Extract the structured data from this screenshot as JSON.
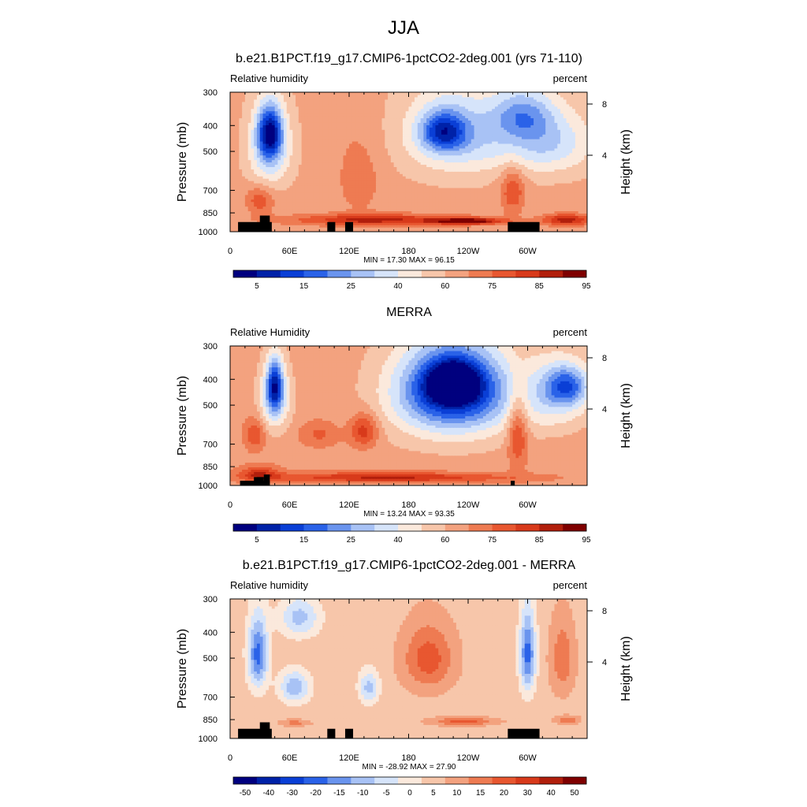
{
  "main_title": "JJA",
  "chart_data": [
    {
      "type": "heatmap",
      "title": "b.e21.B1PCT.f19_g17.CMIP6-1pctCO2-2deg.001 (yrs 71-110)",
      "left_label": "Relative humidity",
      "right_label": "percent",
      "ylabel": "Pressure (mb)",
      "y2label": "Height (km)",
      "ylim": [
        1000,
        300
      ],
      "yticks": [
        300,
        400,
        500,
        700,
        850,
        1000
      ],
      "y2ticks": [
        "8",
        "4"
      ],
      "xlim": [
        0,
        360
      ],
      "xticks": [
        {
          "lon": 0,
          "label": "0"
        },
        {
          "lon": 60,
          "label": "60E"
        },
        {
          "lon": 120,
          "label": "120E"
        },
        {
          "lon": 180,
          "label": "180"
        },
        {
          "lon": 240,
          "label": "120W"
        },
        {
          "lon": 300,
          "label": "60W"
        }
      ],
      "stats": "MIN =  17.30  MAX =  96.15",
      "colorbar": {
        "colors": [
          "#00007f",
          "#0022a8",
          "#0a3fd6",
          "#2a62e8",
          "#6a94ee",
          "#a8c2f5",
          "#d6e4fa",
          "#fbe9dc",
          "#f7c6aa",
          "#f3a27f",
          "#ee7b52",
          "#e85730",
          "#d83a1b",
          "#b11f0c",
          "#7f0000"
        ],
        "labels": [
          "5",
          "15",
          "25",
          "40",
          "60",
          "75",
          "85",
          "95"
        ]
      },
      "features": [
        {
          "lon": 40,
          "p": 420,
          "v": 22,
          "rx": 12,
          "rp": 90
        },
        {
          "lon": 40,
          "p": 480,
          "v": 35,
          "rx": 20,
          "rp": 160
        },
        {
          "lon": 30,
          "p": 760,
          "v": 78,
          "rx": 14,
          "rp": 90
        },
        {
          "lon": 215,
          "p": 420,
          "v": 28,
          "rx": 22,
          "rp": 70
        },
        {
          "lon": 230,
          "p": 430,
          "v": 38,
          "rx": 55,
          "rp": 160
        },
        {
          "lon": 130,
          "p": 620,
          "v": 70,
          "rx": 25,
          "rp": 260
        },
        {
          "lon": 285,
          "p": 700,
          "v": 80,
          "rx": 12,
          "rp": 140
        },
        {
          "lon": 295,
          "p": 360,
          "v": 40,
          "rx": 30,
          "rp": 80
        },
        {
          "lon": 320,
          "p": 460,
          "v": 40,
          "rx": 45,
          "rp": 130
        },
        {
          "lon": 150,
          "p": 900,
          "v": 88,
          "rx": 90,
          "rp": 45
        },
        {
          "lon": 240,
          "p": 910,
          "v": 95,
          "rx": 35,
          "rp": 25
        },
        {
          "lon": 340,
          "p": 900,
          "v": 90,
          "rx": 25,
          "rp": 45
        }
      ],
      "base": 62,
      "land": [
        {
          "lon0": 8,
          "lon1": 42,
          "p": 920
        },
        {
          "lon0": 30,
          "lon1": 40,
          "p": 870
        },
        {
          "lon0": 98,
          "lon1": 106,
          "p": 920
        },
        {
          "lon0": 116,
          "lon1": 124,
          "p": 920
        },
        {
          "lon0": 280,
          "lon1": 312,
          "p": 920
        }
      ]
    },
    {
      "type": "heatmap",
      "title": "MERRA",
      "left_label": "Relative Humidity",
      "right_label": "percent",
      "ylabel": "Pressure (mb)",
      "y2label": "Height (km)",
      "ylim": [
        1000,
        300
      ],
      "yticks": [
        300,
        400,
        500,
        700,
        850,
        1000
      ],
      "y2ticks": [
        "8",
        "4"
      ],
      "xlim": [
        0,
        360
      ],
      "xticks": [
        {
          "lon": 0,
          "label": "0"
        },
        {
          "lon": 60,
          "label": "60E"
        },
        {
          "lon": 120,
          "label": "120E"
        },
        {
          "lon": 180,
          "label": "180"
        },
        {
          "lon": 240,
          "label": "120W"
        },
        {
          "lon": 300,
          "label": "60W"
        }
      ],
      "stats": "MIN =  13.24  MAX =  93.35",
      "colorbar": {
        "colors": [
          "#00007f",
          "#0022a8",
          "#0a3fd6",
          "#2a62e8",
          "#6a94ee",
          "#a8c2f5",
          "#d6e4fa",
          "#fbe9dc",
          "#f7c6aa",
          "#f3a27f",
          "#ee7b52",
          "#e85730",
          "#d83a1b",
          "#b11f0c",
          "#7f0000"
        ],
        "labels": [
          "5",
          "15",
          "25",
          "40",
          "60",
          "75",
          "85",
          "95"
        ]
      },
      "features": [
        {
          "lon": 45,
          "p": 420,
          "v": 25,
          "rx": 8,
          "rp": 90
        },
        {
          "lon": 45,
          "p": 470,
          "v": 40,
          "rx": 16,
          "rp": 140
        },
        {
          "lon": 25,
          "p": 640,
          "v": 80,
          "rx": 10,
          "rp": 90
        },
        {
          "lon": 135,
          "p": 620,
          "v": 85,
          "rx": 14,
          "rp": 90
        },
        {
          "lon": 90,
          "p": 640,
          "v": 75,
          "rx": 20,
          "rp": 70
        },
        {
          "lon": 225,
          "p": 410,
          "v": 12,
          "rx": 22,
          "rp": 60
        },
        {
          "lon": 225,
          "p": 430,
          "v": 25,
          "rx": 50,
          "rp": 140
        },
        {
          "lon": 225,
          "p": 470,
          "v": 40,
          "rx": 70,
          "rp": 220
        },
        {
          "lon": 290,
          "p": 620,
          "v": 85,
          "rx": 10,
          "rp": 200
        },
        {
          "lon": 340,
          "p": 420,
          "v": 35,
          "rx": 22,
          "rp": 70
        },
        {
          "lon": 330,
          "p": 460,
          "v": 45,
          "rx": 35,
          "rp": 140
        },
        {
          "lon": 160,
          "p": 930,
          "v": 88,
          "rx": 120,
          "rp": 40
        },
        {
          "lon": 30,
          "p": 900,
          "v": 85,
          "rx": 20,
          "rp": 60
        }
      ],
      "base": 64,
      "land": [
        {
          "lon0": 10,
          "lon1": 40,
          "p": 960
        },
        {
          "lon0": 24,
          "lon1": 34,
          "p": 930
        },
        {
          "lon0": 34,
          "lon1": 40,
          "p": 910
        },
        {
          "lon0": 283,
          "lon1": 287,
          "p": 960
        }
      ]
    },
    {
      "type": "heatmap",
      "title": "b.e21.B1PCT.f19_g17.CMIP6-1pctCO2-2deg.001 - MERRA",
      "left_label": "Relative humidity",
      "right_label": "percent",
      "ylabel": "Pressure (mb)",
      "y2label": "Height (km)",
      "ylim": [
        1000,
        300
      ],
      "yticks": [
        300,
        400,
        500,
        700,
        850,
        1000
      ],
      "y2ticks": [
        "8",
        "4"
      ],
      "xlim": [
        0,
        360
      ],
      "xticks": [
        {
          "lon": 0,
          "label": "0"
        },
        {
          "lon": 60,
          "label": "60E"
        },
        {
          "lon": 120,
          "label": "120E"
        },
        {
          "lon": 180,
          "label": "180"
        },
        {
          "lon": 240,
          "label": "120W"
        },
        {
          "lon": 300,
          "label": "60W"
        }
      ],
      "stats": "MIN = -28.92  MAX =  27.90",
      "colorbar": {
        "colors": [
          "#00007f",
          "#0022a8",
          "#0a3fd6",
          "#2a62e8",
          "#6a94ee",
          "#a8c2f5",
          "#d6e4fa",
          "#fbe9dc",
          "#f7c6aa",
          "#f3a27f",
          "#ee7b52",
          "#e85730",
          "#d83a1b",
          "#b11f0c",
          "#7f0000"
        ],
        "labels": [
          "-50",
          "-40",
          "-30",
          "-20",
          "-15",
          "-10",
          "-5",
          "0",
          "5",
          "10",
          "15",
          "20",
          "30",
          "40",
          "50"
        ]
      },
      "features": [
        {
          "lon": 28,
          "p": 480,
          "v": -22,
          "rx": 10,
          "rp": 150
        },
        {
          "lon": 65,
          "p": 640,
          "v": -14,
          "rx": 15,
          "rp": 90
        },
        {
          "lon": 140,
          "p": 640,
          "v": -12,
          "rx": 10,
          "rp": 90
        },
        {
          "lon": 70,
          "p": 350,
          "v": -12,
          "rx": 20,
          "rp": 60
        },
        {
          "lon": 200,
          "p": 500,
          "v": 18,
          "rx": 25,
          "rp": 140
        },
        {
          "lon": 300,
          "p": 480,
          "v": -22,
          "rx": 8,
          "rp": 170
        },
        {
          "lon": 335,
          "p": 500,
          "v": 14,
          "rx": 12,
          "rp": 160
        },
        {
          "lon": 235,
          "p": 860,
          "v": 18,
          "rx": 30,
          "rp": 30
        },
        {
          "lon": 65,
          "p": 870,
          "v": 12,
          "rx": 15,
          "rp": 25
        },
        {
          "lon": 340,
          "p": 850,
          "v": 14,
          "rx": 12,
          "rp": 30
        }
      ],
      "base": 3,
      "land": [
        {
          "lon0": 8,
          "lon1": 42,
          "p": 920
        },
        {
          "lon0": 30,
          "lon1": 40,
          "p": 870
        },
        {
          "lon0": 98,
          "lon1": 106,
          "p": 920
        },
        {
          "lon0": 116,
          "lon1": 124,
          "p": 920
        },
        {
          "lon0": 280,
          "lon1": 312,
          "p": 920
        }
      ]
    }
  ]
}
